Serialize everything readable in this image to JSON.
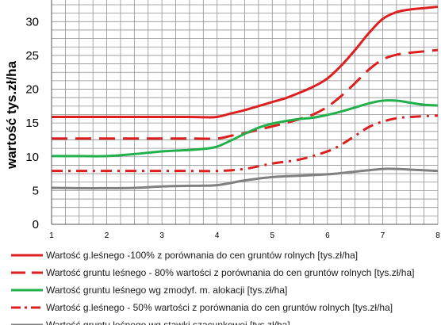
{
  "chart_data": {
    "type": "line",
    "ylabel": "wartość  tys.zł/ha",
    "xlabel": "",
    "title": "",
    "xlim": [
      1,
      8
    ],
    "ylim": [
      0,
      32.5
    ],
    "x_ticks": [
      1,
      2,
      3,
      4,
      5,
      6,
      7,
      8
    ],
    "y_ticks": [
      0,
      5,
      10,
      15,
      20,
      25,
      30
    ],
    "grid": true,
    "legend_position": "bottom",
    "series": [
      {
        "name": "Wartość g.leśnego -100% z porównania  do cen gruntów rolnych [tys.zł/ha]",
        "color": "#dd1f1f",
        "dash": "solid",
        "x": [
          1,
          1.5,
          2,
          2.5,
          3,
          3.5,
          3.8,
          4,
          4.25,
          4.5,
          4.75,
          5,
          5.25,
          5.5,
          5.75,
          6,
          6.25,
          6.5,
          6.75,
          7,
          7.25,
          7.5,
          7.75,
          8
        ],
        "y": [
          15.9,
          15.9,
          15.9,
          15.9,
          15.9,
          15.9,
          15.85,
          15.9,
          16.4,
          16.9,
          17.5,
          18.1,
          18.7,
          19.5,
          20.4,
          21.6,
          23.5,
          25.8,
          28.3,
          30.4,
          31.4,
          31.8,
          32.0,
          32.2
        ]
      },
      {
        "name": "Wartość gruntu leśnego -  80% wartości z porównania  do cen gruntów rolnych [tys.zł/ha]",
        "color": "#dd1f1f",
        "dash": "long",
        "x": [
          1,
          1.5,
          2,
          2.5,
          3,
          3.5,
          4,
          4.25,
          4.5,
          4.75,
          5,
          5.25,
          5.5,
          5.75,
          6,
          6.25,
          6.5,
          6.75,
          7,
          7.25,
          7.5,
          7.75,
          8
        ],
        "y": [
          12.7,
          12.7,
          12.7,
          12.7,
          12.7,
          12.7,
          12.7,
          13.1,
          13.5,
          14.0,
          14.5,
          15.0,
          15.6,
          16.3,
          17.4,
          19.0,
          20.9,
          22.9,
          24.4,
          25.1,
          25.4,
          25.6,
          25.8
        ]
      },
      {
        "name": "Wartość gruntu leśnego wg zmodyf. m. alokacji [tys.zł/ha]",
        "color": "#22b04b",
        "dash": "solid",
        "x": [
          1,
          1.5,
          2,
          2.5,
          3,
          3.5,
          3.8,
          4,
          4.25,
          4.5,
          4.75,
          5,
          5.25,
          5.5,
          5.75,
          6,
          6.25,
          6.5,
          6.75,
          7,
          7.25,
          7.5,
          7.75,
          8
        ],
        "y": [
          10.1,
          10.1,
          10.1,
          10.4,
          10.8,
          11.0,
          11.2,
          11.5,
          12.4,
          13.4,
          14.3,
          14.9,
          15.3,
          15.6,
          15.8,
          16.2,
          16.7,
          17.3,
          17.9,
          18.3,
          18.3,
          18.0,
          17.7,
          17.6
        ]
      },
      {
        "name": "Wartość g.leśnego - 50% wartości z porównania do cen gruntów rolnych [tys.zł/ha]",
        "color": "#dd1f1f",
        "dash": "dashdot",
        "x": [
          1,
          1.5,
          2,
          2.5,
          3,
          3.5,
          4,
          4.5,
          5,
          5.5,
          6,
          6.25,
          6.5,
          6.75,
          7,
          7.25,
          7.5,
          8
        ],
        "y": [
          7.9,
          7.9,
          7.9,
          7.9,
          7.9,
          7.9,
          7.9,
          8.2,
          9.0,
          9.6,
          10.8,
          11.8,
          13.1,
          14.4,
          15.2,
          15.7,
          15.9,
          16.1
        ]
      },
      {
        "name": "Wartość gruntu leśnego wg stawki szacunkowej [tys.zł/ha]",
        "color": "#808080",
        "dash": "solid",
        "x": [
          1,
          1.5,
          2,
          2.5,
          3,
          3.5,
          4,
          4.5,
          5,
          5.5,
          6,
          6.5,
          7,
          7.25,
          7.5,
          8
        ],
        "y": [
          5.4,
          5.35,
          5.35,
          5.4,
          5.6,
          5.7,
          5.8,
          6.5,
          7.0,
          7.2,
          7.4,
          7.8,
          8.2,
          8.2,
          8.1,
          7.9
        ]
      }
    ]
  }
}
